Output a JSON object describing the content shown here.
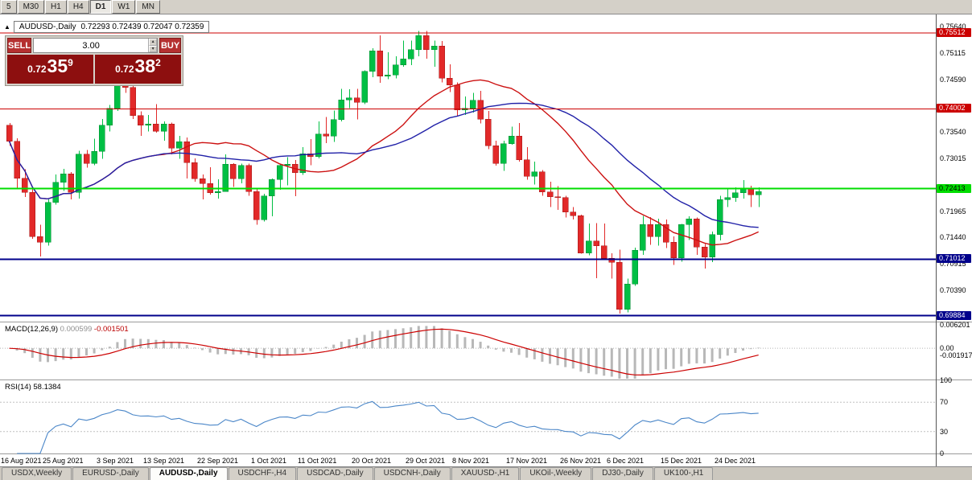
{
  "toolbar": {
    "periods": [
      "5",
      "M30",
      "H1",
      "H4",
      "D1",
      "W1",
      "MN"
    ],
    "active_period": "D1"
  },
  "window": {
    "symbol_title": "AUDUSD-,Daily",
    "ohlc_line": "0.72293 0.72439 0.72047 0.72359"
  },
  "trade_panel": {
    "sell_label": "SELL",
    "buy_label": "BUY",
    "volume": "3.00",
    "sell_price": {
      "prefix": "0.72",
      "main": "35",
      "sup": "9"
    },
    "buy_price": {
      "prefix": "0.72",
      "main": "38",
      "sup": "2"
    }
  },
  "price_axis": {
    "ticks": [
      {
        "label": "0.75640",
        "value": 0.7564
      },
      {
        "label": "0.75115",
        "value": 0.75115
      },
      {
        "label": "0.74590",
        "value": 0.7459
      },
      {
        "label": "0.73540",
        "value": 0.7354
      },
      {
        "label": "0.73015",
        "value": 0.73015
      },
      {
        "label": "0.71965",
        "value": 0.71965
      },
      {
        "label": "0.71440",
        "value": 0.7144
      },
      {
        "label": "0.70915",
        "value": 0.70915
      },
      {
        "label": "0.70390",
        "value": 0.7039
      }
    ]
  },
  "hlines": [
    {
      "label": "0.75512",
      "value": 0.75512,
      "color": "#cc0000",
      "width": 1,
      "text_color": "#ffffff"
    },
    {
      "label": "0.74002",
      "value": 0.74002,
      "color": "#cc0000",
      "width": 1,
      "text_color": "#ffffff"
    },
    {
      "label": "0.72413",
      "value": 0.72413,
      "color": "#00dd00",
      "width": 2,
      "text_color": "#000000"
    },
    {
      "label": "0.71012",
      "value": 0.71012,
      "color": "#00008b",
      "width": 2,
      "text_color": "#ffffff"
    },
    {
      "label": "0.69884",
      "value": 0.69884,
      "color": "#00008b",
      "width": 2,
      "text_color": "#ffffff"
    }
  ],
  "chart_data": {
    "type": "candlestick",
    "symbol": "AUDUSD-",
    "timeframe": "Daily",
    "price_range": {
      "top": 0.7588,
      "bottom": 0.69768
    },
    "x_axis": {
      "labels": [
        "16 Aug 2021",
        "25 Aug 2021",
        "3 Sep 2021",
        "13 Sep 2021",
        "22 Sep 2021",
        "1 Oct 2021",
        "11 Oct 2021",
        "20 Oct 2021",
        "29 Oct 2021",
        "8 Nov 2021",
        "17 Nov 2021",
        "26 Nov 2021",
        "6 Dec 2021",
        "15 Dec 2021",
        "24 Dec 2021"
      ],
      "indices": [
        0,
        7,
        14,
        20,
        27,
        34,
        40,
        47,
        54,
        60,
        67,
        74,
        80,
        87,
        94
      ]
    },
    "candles": [
      [
        0.7368,
        0.7372,
        0.7326,
        0.7336
      ],
      [
        0.7336,
        0.7342,
        0.7241,
        0.7262
      ],
      [
        0.7262,
        0.728,
        0.7225,
        0.7234
      ],
      [
        0.7234,
        0.724,
        0.7142,
        0.7146
      ],
      [
        0.7146,
        0.717,
        0.7106,
        0.7135
      ],
      [
        0.7135,
        0.722,
        0.7128,
        0.7214
      ],
      [
        0.7214,
        0.727,
        0.721,
        0.7254
      ],
      [
        0.7254,
        0.7281,
        0.7237,
        0.7271
      ],
      [
        0.7271,
        0.7274,
        0.722,
        0.7234
      ],
      [
        0.7234,
        0.7317,
        0.7222,
        0.731
      ],
      [
        0.731,
        0.7318,
        0.7283,
        0.7292
      ],
      [
        0.7292,
        0.7341,
        0.7288,
        0.7316
      ],
      [
        0.7316,
        0.738,
        0.7301,
        0.7368
      ],
      [
        0.7368,
        0.7408,
        0.7355,
        0.7401
      ],
      [
        0.7401,
        0.7477,
        0.7396,
        0.746
      ],
      [
        0.746,
        0.7468,
        0.7432,
        0.7443
      ],
      [
        0.7443,
        0.7451,
        0.738,
        0.7387
      ],
      [
        0.7387,
        0.7395,
        0.7346,
        0.7368
      ],
      [
        0.7368,
        0.7388,
        0.7355,
        0.737
      ],
      [
        0.737,
        0.741,
        0.7353,
        0.7356
      ],
      [
        0.7356,
        0.7375,
        0.7337,
        0.737
      ],
      [
        0.737,
        0.7373,
        0.731,
        0.7322
      ],
      [
        0.7322,
        0.7346,
        0.7301,
        0.7335
      ],
      [
        0.7335,
        0.7343,
        0.7262,
        0.7293
      ],
      [
        0.7293,
        0.7302,
        0.7255,
        0.7261
      ],
      [
        0.7261,
        0.727,
        0.722,
        0.7252
      ],
      [
        0.7252,
        0.7284,
        0.723,
        0.7233
      ],
      [
        0.7233,
        0.726,
        0.7222,
        0.7236
      ],
      [
        0.7236,
        0.731,
        0.7235,
        0.729
      ],
      [
        0.729,
        0.7292,
        0.7245,
        0.7261
      ],
      [
        0.7261,
        0.7291,
        0.7252,
        0.7288
      ],
      [
        0.7288,
        0.7291,
        0.7227,
        0.7236
      ],
      [
        0.7236,
        0.724,
        0.717,
        0.718
      ],
      [
        0.718,
        0.7231,
        0.7176,
        0.7227
      ],
      [
        0.7227,
        0.7262,
        0.7186,
        0.726
      ],
      [
        0.726,
        0.7291,
        0.7239,
        0.7288
      ],
      [
        0.7288,
        0.7304,
        0.7248,
        0.729
      ],
      [
        0.729,
        0.7298,
        0.7226,
        0.7273
      ],
      [
        0.7273,
        0.7324,
        0.7269,
        0.7311
      ],
      [
        0.7311,
        0.734,
        0.7288,
        0.7305
      ],
      [
        0.7305,
        0.7375,
        0.7302,
        0.735
      ],
      [
        0.735,
        0.7384,
        0.7332,
        0.7346
      ],
      [
        0.7346,
        0.7397,
        0.7334,
        0.7379
      ],
      [
        0.7379,
        0.744,
        0.7375,
        0.7418
      ],
      [
        0.7418,
        0.7439,
        0.7402,
        0.7422
      ],
      [
        0.7422,
        0.744,
        0.7379,
        0.7413
      ],
      [
        0.7413,
        0.7477,
        0.741,
        0.7475
      ],
      [
        0.7475,
        0.7521,
        0.7463,
        0.7516
      ],
      [
        0.7516,
        0.7546,
        0.7452,
        0.7465
      ],
      [
        0.7465,
        0.7513,
        0.7459,
        0.7468
      ],
      [
        0.7468,
        0.7505,
        0.7461,
        0.7488
      ],
      [
        0.7488,
        0.7536,
        0.7484,
        0.75
      ],
      [
        0.75,
        0.7536,
        0.7487,
        0.7518
      ],
      [
        0.7518,
        0.7555,
        0.7505,
        0.7546
      ],
      [
        0.7546,
        0.7555,
        0.75,
        0.7518
      ],
      [
        0.7518,
        0.7536,
        0.7484,
        0.7525
      ],
      [
        0.7525,
        0.7535,
        0.7453,
        0.7461
      ],
      [
        0.7461,
        0.7489,
        0.7434,
        0.7448
      ],
      [
        0.7448,
        0.7453,
        0.7385,
        0.7398
      ],
      [
        0.7398,
        0.7425,
        0.7388,
        0.7401
      ],
      [
        0.7401,
        0.7432,
        0.7393,
        0.7417
      ],
      [
        0.7417,
        0.7436,
        0.7371,
        0.738
      ],
      [
        0.738,
        0.7396,
        0.732,
        0.7327
      ],
      [
        0.7327,
        0.7337,
        0.7287,
        0.7292
      ],
      [
        0.7292,
        0.7337,
        0.7277,
        0.7331
      ],
      [
        0.7331,
        0.7365,
        0.7329,
        0.7346
      ],
      [
        0.7346,
        0.7372,
        0.7295,
        0.7299
      ],
      [
        0.7299,
        0.7324,
        0.7259,
        0.7266
      ],
      [
        0.7266,
        0.7295,
        0.725,
        0.7275
      ],
      [
        0.7275,
        0.7278,
        0.7227,
        0.7235
      ],
      [
        0.7235,
        0.7255,
        0.7205,
        0.7225
      ],
      [
        0.7225,
        0.7246,
        0.7199,
        0.7224
      ],
      [
        0.7224,
        0.7227,
        0.7184,
        0.7195
      ],
      [
        0.7195,
        0.7205,
        0.718,
        0.7188
      ],
      [
        0.7188,
        0.719,
        0.7112,
        0.7113
      ],
      [
        0.7113,
        0.7172,
        0.7109,
        0.7137
      ],
      [
        0.7137,
        0.7173,
        0.7063,
        0.7128
      ],
      [
        0.7128,
        0.7172,
        0.71,
        0.7103
      ],
      [
        0.7103,
        0.7113,
        0.7062,
        0.7095
      ],
      [
        0.7095,
        0.712,
        0.6993,
        0.7001
      ],
      [
        0.7001,
        0.7062,
        0.6995,
        0.7052
      ],
      [
        0.7052,
        0.7124,
        0.7048,
        0.7119
      ],
      [
        0.7119,
        0.7187,
        0.711,
        0.717
      ],
      [
        0.717,
        0.7185,
        0.713,
        0.7146
      ],
      [
        0.7146,
        0.7182,
        0.7128,
        0.717
      ],
      [
        0.717,
        0.718,
        0.7123,
        0.7135
      ],
      [
        0.7135,
        0.7146,
        0.709,
        0.7104
      ],
      [
        0.7104,
        0.7171,
        0.7096,
        0.717
      ],
      [
        0.717,
        0.7186,
        0.7139,
        0.7181
      ],
      [
        0.7181,
        0.7184,
        0.711,
        0.7125
      ],
      [
        0.7125,
        0.7131,
        0.7082,
        0.7105
      ],
      [
        0.7105,
        0.7156,
        0.7095,
        0.715
      ],
      [
        0.715,
        0.7227,
        0.7138,
        0.722
      ],
      [
        0.722,
        0.7242,
        0.7205,
        0.7224
      ],
      [
        0.7224,
        0.7244,
        0.7215,
        0.7233
      ],
      [
        0.7233,
        0.7258,
        0.7222,
        0.7241
      ],
      [
        0.7241,
        0.7247,
        0.7205,
        0.7229
      ],
      [
        0.72293,
        0.72439,
        0.72047,
        0.72359
      ]
    ],
    "moving_averages": [
      {
        "name": "SMA 20",
        "period": 20,
        "color": "#cc1111"
      },
      {
        "name": "SMA 30",
        "period": 30,
        "color": "#2121a8"
      }
    ]
  },
  "macd": {
    "name": "MACD(12,26,9)",
    "value_main": "0.000599",
    "value_signal": "-0.001501",
    "params": {
      "fast": 12,
      "slow": 26,
      "signal": 9
    },
    "range": {
      "top": 0.0068,
      "bottom": -0.0082
    },
    "axis": [
      {
        "label": "0.006201",
        "value": 0.006201
      },
      {
        "label": "0.00",
        "value": 0
      },
      {
        "label": "-0.001917",
        "value": -0.001917
      }
    ]
  },
  "rsi": {
    "name": "RSI(14)",
    "value": "58.1384",
    "period": 14,
    "levels": [
      70,
      30
    ],
    "axis": [
      {
        "label": "100",
        "value": 100
      },
      {
        "label": "70",
        "value": 70
      },
      {
        "label": "30",
        "value": 30
      },
      {
        "label": "0",
        "value": 0
      }
    ]
  },
  "tabs": {
    "items": [
      "USDX,Weekly",
      "EURUSD-,Daily",
      "AUDUSD-,Daily",
      "USDCHF-,H4",
      "USDCAD-,Daily",
      "USDCNH-,Daily",
      "XAUUSD-,H1",
      "UKOil-,Weekly",
      "DJ30-,Daily",
      "UK100-,H1"
    ],
    "active_index": 2
  },
  "colors": {
    "candle_up": "#00bf44",
    "candle_up_stroke": "#008a30",
    "candle_down": "#e22929",
    "candle_down_stroke": "#a01616",
    "ma_fast": "#cc1111",
    "ma_slow": "#2121a8",
    "macd_hist": "#b8b8b8",
    "macd_signal": "#cc0000",
    "rsi_line": "#4a86c8",
    "level_dash": "#c0c0c0"
  }
}
